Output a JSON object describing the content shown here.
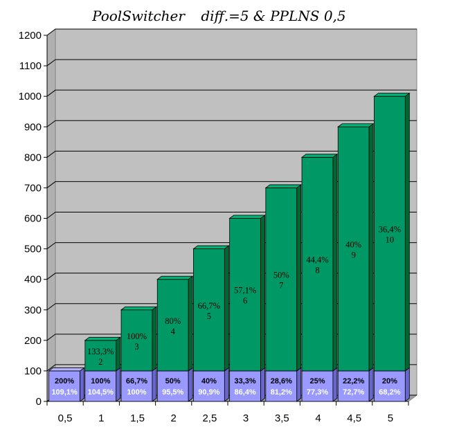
{
  "chart_data": {
    "type": "bar",
    "stacked": true,
    "title_left": "PoolSwitcher",
    "title_right": "diff.=5  &  PPLNS 0,5",
    "categories": [
      "0,5",
      "1",
      "1,5",
      "2",
      "2,5",
      "3",
      "3,5",
      "4",
      "4,5",
      "5"
    ],
    "ylim": [
      0,
      1200
    ],
    "yticks": [
      "0",
      "100",
      "200",
      "300",
      "400",
      "500",
      "600",
      "700",
      "800",
      "900",
      "1000",
      "1100",
      "1200"
    ],
    "ytick_values": [
      0,
      100,
      200,
      300,
      400,
      500,
      600,
      700,
      800,
      900,
      1000,
      1100,
      1200
    ],
    "grid": true,
    "colors": {
      "plot_bg": "#c0c0c0",
      "green_front": "#009966",
      "green_side": "#006633",
      "green_top": "#00b377",
      "blue_front": "#9999ff",
      "blue_side": "#6666cc",
      "blue_top": "#b3b3ff"
    },
    "series": [
      {
        "values": [
          100,
          100,
          100,
          100,
          100,
          100,
          100,
          100,
          100,
          100
        ],
        "labels_line1": [
          "200%",
          "100%",
          "66,7%",
          "50%",
          "40%",
          "33,3%",
          "28,6%",
          "25%",
          "22,2%",
          "20%"
        ],
        "labels_line2": [
          "109,1%",
          "104,5%",
          "100%",
          "95,5%",
          "90,9%",
          "86,4%",
          "81,2%",
          "77,3%",
          "72,7%",
          "68,2%"
        ]
      },
      {
        "values": [
          0,
          100,
          200,
          300,
          400,
          500,
          600,
          700,
          800,
          900
        ],
        "labels_line1": [
          "",
          "133,3%",
          "100%",
          "80%",
          "66,7%",
          "57,1%",
          "50%",
          "44,4%",
          "40%",
          "36,4%"
        ],
        "labels_line2": [
          "",
          "2",
          "3",
          "4",
          "5",
          "6",
          "7",
          "8",
          "9",
          "10"
        ]
      }
    ]
  }
}
